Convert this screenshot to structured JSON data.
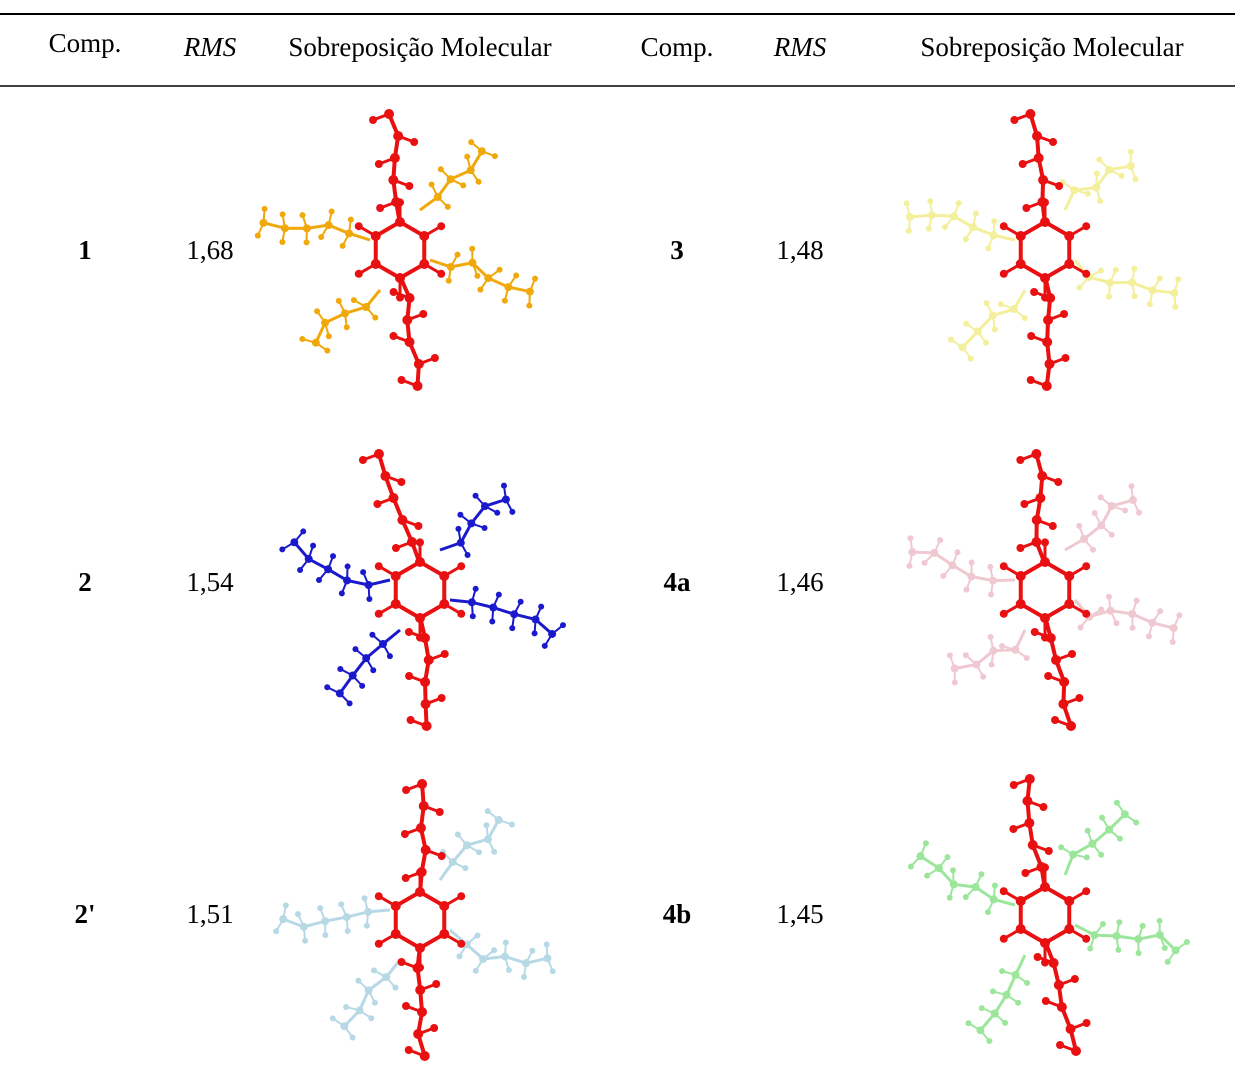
{
  "table": {
    "header": [
      "Comp.",
      "RMS",
      "Sobreposição Molecular",
      "Comp.",
      "RMS",
      "Sobreposição Molecular"
    ],
    "rows": [
      [
        "1",
        "1,68",
        "3",
        "1,48"
      ],
      [
        "2",
        "1,54",
        "4a",
        "1,46"
      ],
      [
        "2'",
        "1,51",
        "4b",
        "1,45"
      ]
    ]
  }
}
